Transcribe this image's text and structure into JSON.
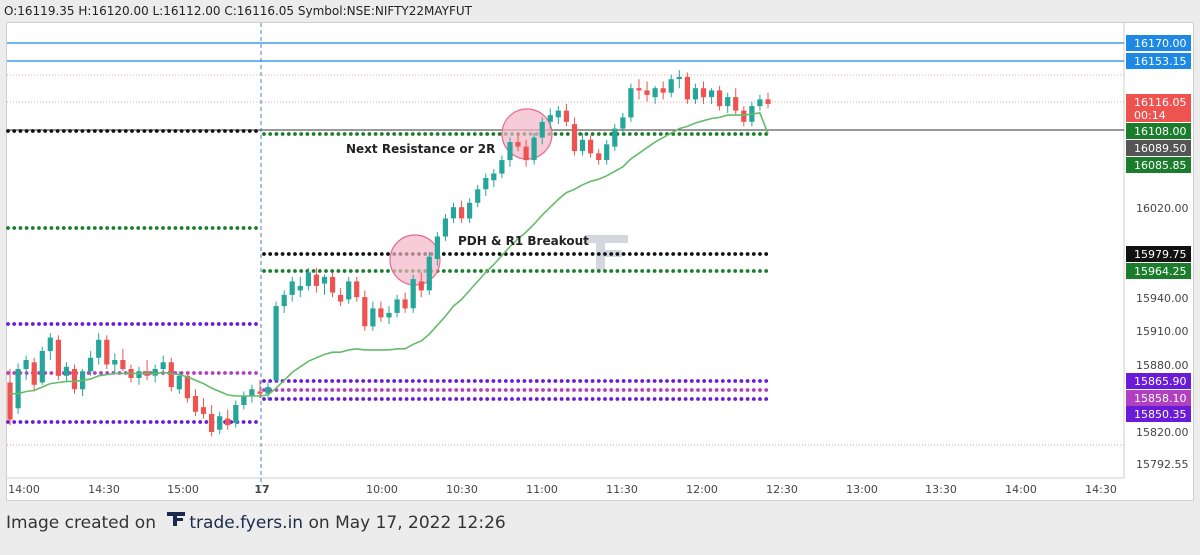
{
  "header": {
    "open_label": "O:",
    "open": "16119.35",
    "high_label": "H:",
    "high": "16120.00",
    "low_label": "L:",
    "low": "16112.00",
    "close_label": "C:",
    "close": "16116.05",
    "symbol_label": "Symbol:",
    "symbol": "NSE:NIFTY22MAYFUT"
  },
  "footer": {
    "prefix": "Image created on",
    "brand": "trade.fyers.in",
    "suffix": "on May 17, 2022 12:26"
  },
  "colors": {
    "bull": "#26a69a",
    "bear": "#ef5350",
    "ema": "#66bb6a",
    "blue_line": "#1e88e5",
    "black_dots": "#111111",
    "green_dots": "#1b7d2c",
    "purple_dots": "#6a1bd8",
    "magenta_dots": "#b040c0",
    "circle_fill": "#f4b6c8",
    "circle_stroke": "#e36b8e"
  },
  "chart_data": {
    "type": "candlestick",
    "y_ticks": [
      "16020.00",
      "15940.00",
      "15910.00",
      "15880.00",
      "15820.00",
      "15792.55"
    ],
    "x_ticks": [
      "14:00",
      "14:30",
      "15:00",
      "17",
      "10:00",
      "10:30",
      "11:00",
      "11:30",
      "12:00",
      "12:30",
      "13:00",
      "13:30",
      "14:00",
      "14:30"
    ],
    "price_tags": [
      {
        "value": "16170.00",
        "color": "#1e88e5",
        "kind": "horizontal-line"
      },
      {
        "value": "16153.15",
        "color": "#1e88e5",
        "kind": "horizontal-line"
      },
      {
        "value": "16116.05",
        "sub": "00:14",
        "color": "#ef5350",
        "kind": "last-price"
      },
      {
        "value": "16108.00",
        "color": "#1b7d2c",
        "kind": "horizontal-line"
      },
      {
        "value": "16089.50",
        "color": "#555555",
        "kind": "ema"
      },
      {
        "value": "16085.85",
        "color": "#1b7d2c",
        "kind": "level"
      },
      {
        "value": "15979.75",
        "color": "#111111",
        "kind": "level"
      },
      {
        "value": "15964.25",
        "color": "#1b7d2c",
        "kind": "level"
      },
      {
        "value": "15865.90",
        "color": "#6a1bd8",
        "kind": "level"
      },
      {
        "value": "15858.10",
        "color": "#b040c0",
        "kind": "level"
      },
      {
        "value": "15850.35",
        "color": "#6a1bd8",
        "kind": "level"
      }
    ],
    "annotations": [
      "Next Resistance or 2R",
      "PDH & R1 Breakout"
    ],
    "candles": [
      {
        "o": 15868,
        "h": 15880,
        "l": 15830,
        "c": 15835
      },
      {
        "o": 15845,
        "h": 15885,
        "l": 15840,
        "c": 15880
      },
      {
        "o": 15880,
        "h": 15892,
        "l": 15870,
        "c": 15888
      },
      {
        "o": 15886,
        "h": 15890,
        "l": 15860,
        "c": 15866
      },
      {
        "o": 15868,
        "h": 15900,
        "l": 15866,
        "c": 15896
      },
      {
        "o": 15896,
        "h": 15912,
        "l": 15888,
        "c": 15908
      },
      {
        "o": 15906,
        "h": 15910,
        "l": 15870,
        "c": 15874
      },
      {
        "o": 15874,
        "h": 15886,
        "l": 15868,
        "c": 15882
      },
      {
        "o": 15880,
        "h": 15884,
        "l": 15858,
        "c": 15862
      },
      {
        "o": 15862,
        "h": 15880,
        "l": 15856,
        "c": 15878
      },
      {
        "o": 15878,
        "h": 15896,
        "l": 15874,
        "c": 15890
      },
      {
        "o": 15890,
        "h": 15912,
        "l": 15884,
        "c": 15906
      },
      {
        "o": 15906,
        "h": 15910,
        "l": 15880,
        "c": 15884
      },
      {
        "o": 15884,
        "h": 15894,
        "l": 15876,
        "c": 15888
      },
      {
        "o": 15888,
        "h": 15898,
        "l": 15878,
        "c": 15880
      },
      {
        "o": 15880,
        "h": 15884,
        "l": 15868,
        "c": 15872
      },
      {
        "o": 15872,
        "h": 15882,
        "l": 15866,
        "c": 15878
      },
      {
        "o": 15878,
        "h": 15888,
        "l": 15870,
        "c": 15874
      },
      {
        "o": 15874,
        "h": 15884,
        "l": 15868,
        "c": 15880
      },
      {
        "o": 15880,
        "h": 15892,
        "l": 15876,
        "c": 15886
      },
      {
        "o": 15886,
        "h": 15890,
        "l": 15860,
        "c": 15864
      },
      {
        "o": 15862,
        "h": 15878,
        "l": 15858,
        "c": 15874
      },
      {
        "o": 15874,
        "h": 15878,
        "l": 15850,
        "c": 15854
      },
      {
        "o": 15856,
        "h": 15862,
        "l": 15838,
        "c": 15842
      },
      {
        "o": 15846,
        "h": 15854,
        "l": 15836,
        "c": 15840
      },
      {
        "o": 15840,
        "h": 15848,
        "l": 15820,
        "c": 15824
      },
      {
        "o": 15826,
        "h": 15842,
        "l": 15822,
        "c": 15838
      },
      {
        "o": 15836,
        "h": 15844,
        "l": 15826,
        "c": 15830
      },
      {
        "o": 15832,
        "h": 15852,
        "l": 15828,
        "c": 15848
      },
      {
        "o": 15848,
        "h": 15860,
        "l": 15844,
        "c": 15856
      },
      {
        "o": 15856,
        "h": 15866,
        "l": 15850,
        "c": 15862
      },
      {
        "o": 15860,
        "h": 15870,
        "l": 15854,
        "c": 15858
      },
      {
        "o": 15858,
        "h": 15868,
        "l": 15852,
        "c": 15864
      },
      {
        "o": 15870,
        "h": 15940,
        "l": 15868,
        "c": 15936
      },
      {
        "o": 15936,
        "h": 15950,
        "l": 15930,
        "c": 15946
      },
      {
        "o": 15946,
        "h": 15962,
        "l": 15940,
        "c": 15958
      },
      {
        "o": 15950,
        "h": 15962,
        "l": 15944,
        "c": 15954
      },
      {
        "o": 15954,
        "h": 15970,
        "l": 15950,
        "c": 15966
      },
      {
        "o": 15964,
        "h": 15970,
        "l": 15948,
        "c": 15954
      },
      {
        "o": 15956,
        "h": 15964,
        "l": 15946,
        "c": 15962
      },
      {
        "o": 15962,
        "h": 15966,
        "l": 15944,
        "c": 15948
      },
      {
        "o": 15946,
        "h": 15952,
        "l": 15936,
        "c": 15940
      },
      {
        "o": 15942,
        "h": 15962,
        "l": 15938,
        "c": 15958
      },
      {
        "o": 15958,
        "h": 15962,
        "l": 15940,
        "c": 15944
      },
      {
        "o": 15944,
        "h": 15950,
        "l": 15914,
        "c": 15918
      },
      {
        "o": 15918,
        "h": 15940,
        "l": 15914,
        "c": 15934
      },
      {
        "o": 15934,
        "h": 15940,
        "l": 15922,
        "c": 15926
      },
      {
        "o": 15926,
        "h": 15936,
        "l": 15920,
        "c": 15930
      },
      {
        "o": 15930,
        "h": 15946,
        "l": 15926,
        "c": 15942
      },
      {
        "o": 15942,
        "h": 15948,
        "l": 15930,
        "c": 15934
      },
      {
        "o": 15934,
        "h": 15964,
        "l": 15930,
        "c": 15960
      },
      {
        "o": 15958,
        "h": 15966,
        "l": 15944,
        "c": 15950
      },
      {
        "o": 15950,
        "h": 15984,
        "l": 15946,
        "c": 15980
      },
      {
        "o": 15978,
        "h": 16002,
        "l": 15972,
        "c": 15998
      },
      {
        "o": 15998,
        "h": 16018,
        "l": 15994,
        "c": 16014
      },
      {
        "o": 16014,
        "h": 16028,
        "l": 16010,
        "c": 16024
      },
      {
        "o": 16024,
        "h": 16030,
        "l": 16010,
        "c": 16014
      },
      {
        "o": 16014,
        "h": 16032,
        "l": 16010,
        "c": 16028
      },
      {
        "o": 16028,
        "h": 16044,
        "l": 16024,
        "c": 16040
      },
      {
        "o": 16040,
        "h": 16054,
        "l": 16034,
        "c": 16050
      },
      {
        "o": 16048,
        "h": 16058,
        "l": 16042,
        "c": 16054
      },
      {
        "o": 16054,
        "h": 16070,
        "l": 16050,
        "c": 16066
      },
      {
        "o": 16066,
        "h": 16086,
        "l": 16060,
        "c": 16082
      },
      {
        "o": 16082,
        "h": 16090,
        "l": 16074,
        "c": 16078
      },
      {
        "o": 16078,
        "h": 16084,
        "l": 16060,
        "c": 16066
      },
      {
        "o": 16066,
        "h": 16090,
        "l": 16062,
        "c": 16086
      },
      {
        "o": 16086,
        "h": 16104,
        "l": 16080,
        "c": 16100
      },
      {
        "o": 16100,
        "h": 16112,
        "l": 16094,
        "c": 16106
      },
      {
        "o": 16104,
        "h": 16114,
        "l": 16098,
        "c": 16110
      },
      {
        "o": 16110,
        "h": 16116,
        "l": 16096,
        "c": 16100
      },
      {
        "o": 16098,
        "h": 16104,
        "l": 16070,
        "c": 16074
      },
      {
        "o": 16074,
        "h": 16090,
        "l": 16070,
        "c": 16084
      },
      {
        "o": 16084,
        "h": 16088,
        "l": 16068,
        "c": 16072
      },
      {
        "o": 16072,
        "h": 16076,
        "l": 16062,
        "c": 16066
      },
      {
        "o": 16066,
        "h": 16084,
        "l": 16062,
        "c": 16080
      },
      {
        "o": 16078,
        "h": 16098,
        "l": 16074,
        "c": 16094
      },
      {
        "o": 16094,
        "h": 16108,
        "l": 16090,
        "c": 16104
      },
      {
        "o": 16104,
        "h": 16134,
        "l": 16100,
        "c": 16130
      },
      {
        "o": 16130,
        "h": 16138,
        "l": 16120,
        "c": 16128
      },
      {
        "o": 16128,
        "h": 16136,
        "l": 16118,
        "c": 16124
      },
      {
        "o": 16122,
        "h": 16132,
        "l": 16116,
        "c": 16130
      },
      {
        "o": 16130,
        "h": 16136,
        "l": 16120,
        "c": 16126
      },
      {
        "o": 16126,
        "h": 16142,
        "l": 16122,
        "c": 16138
      },
      {
        "o": 16138,
        "h": 16146,
        "l": 16130,
        "c": 16140
      },
      {
        "o": 16140,
        "h": 16144,
        "l": 16116,
        "c": 16120
      },
      {
        "o": 16120,
        "h": 16134,
        "l": 16116,
        "c": 16130
      },
      {
        "o": 16130,
        "h": 16136,
        "l": 16116,
        "c": 16122
      },
      {
        "o": 16122,
        "h": 16130,
        "l": 16116,
        "c": 16128
      },
      {
        "o": 16128,
        "h": 16132,
        "l": 16110,
        "c": 16114
      },
      {
        "o": 16114,
        "h": 16126,
        "l": 16108,
        "c": 16122
      },
      {
        "o": 16122,
        "h": 16130,
        "l": 16106,
        "c": 16110
      },
      {
        "o": 16110,
        "h": 16114,
        "l": 16096,
        "c": 16100
      },
      {
        "o": 16100,
        "h": 16118,
        "l": 16096,
        "c": 16114
      },
      {
        "o": 16114,
        "h": 16124,
        "l": 16110,
        "c": 16120
      },
      {
        "o": 16120,
        "h": 16126,
        "l": 16112,
        "c": 16116
      }
    ],
    "ema": [
      15858,
      15858,
      15860,
      15861,
      15864,
      15867,
      15868,
      15869,
      15869,
      15870,
      15871,
      15874,
      15875,
      15876,
      15876,
      15876,
      15876,
      15876,
      15876,
      15877,
      15876,
      15875,
      15873,
      15870,
      15867,
      15863,
      15860,
      15857,
      15856,
      15856,
      15856,
      15856,
      15857,
      15863,
      15870,
      15877,
      15882,
      15887,
      15890,
      15893,
      15895,
      15895,
      15897,
      15898,
      15897,
      15897,
      15897,
      15897,
      15898,
      15898,
      15902,
      15905,
      15911,
      15919,
      15927,
      15936,
      15942,
      15950,
      15958,
      15966,
      15973,
      15981,
      15989,
      15996,
      16002,
      16009,
      16017,
      16024,
      16031,
      16037,
      16040,
      16044,
      16047,
      16049,
      16052,
      16056,
      16060,
      16067,
      16072,
      16077,
      16082,
      16086,
      16090,
      16094,
      16096,
      16099,
      16101,
      16103,
      16104,
      16106,
      16106,
      16106,
      16107,
      16108,
      16089.5
    ]
  }
}
